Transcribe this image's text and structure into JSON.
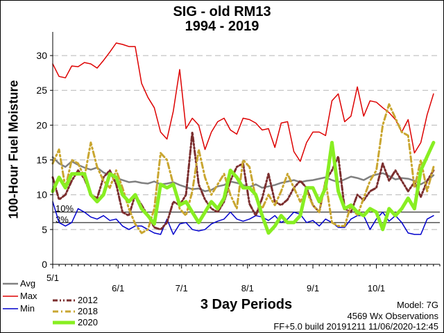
{
  "chart_data": {
    "type": "line",
    "title": "SIG - old RM13",
    "subtitle": "1994 - 2019",
    "xlabel": "3 Day Periods",
    "ylabel": "100-Hour Fuel Moisture",
    "ylim": [
      0,
      33
    ],
    "yticks": [
      0,
      5,
      10,
      15,
      20,
      25,
      30
    ],
    "xlim": [
      0,
      61
    ],
    "x_ticks": [
      {
        "label": "5/1",
        "x": 0
      },
      {
        "label": "6/1",
        "x": 10.3
      },
      {
        "label": "7/1",
        "x": 20.3
      },
      {
        "label": "8/1",
        "x": 30.7
      },
      {
        "label": "9/1",
        "x": 41
      },
      {
        "label": "10/1",
        "x": 51
      }
    ],
    "grid": true,
    "threshold_labels": [
      "10%",
      "3%"
    ],
    "thresholds": [
      7.5,
      6
    ],
    "series": [
      {
        "name": "Avg",
        "color": "#808080",
        "values": [
          15.4,
          14.5,
          14,
          14.8,
          14.3,
          13.9,
          13.6,
          13.9,
          13.2,
          12.8,
          12.4,
          12.1,
          11.8,
          11.9,
          11.7,
          11.6,
          11.9,
          11.5,
          11.6,
          11.8,
          11.4,
          11.1,
          10.8,
          10.9,
          10.5,
          10.7,
          11.2,
          11.4,
          11.9,
          11.7,
          11.4,
          11.1,
          11.5,
          11,
          11.2,
          11.4,
          11.7,
          11.9,
          12.1,
          11.8,
          12,
          12.1,
          12.3,
          12.5,
          12.1,
          11.8,
          12.2,
          12.6,
          12.4,
          12.1,
          12.6,
          12.9,
          13.1,
          12.7,
          12.2,
          12.4,
          12.3,
          12,
          11.5,
          12,
          12.8
        ]
      },
      {
        "name": "Max",
        "color": "#dd0000",
        "values": [
          28.8,
          27,
          26.8,
          28.5,
          28.4,
          29,
          28.8,
          28.2,
          29.3,
          30.5,
          31.8,
          31.6,
          31.3,
          31.3,
          26,
          24,
          22.5,
          19,
          18,
          22,
          28,
          19.5,
          21,
          20,
          16.5,
          19,
          20.5,
          21,
          19.3,
          18.7,
          21,
          20.8,
          20.3,
          19.3,
          19.5,
          16.8,
          20.3,
          20.5,
          16.2,
          14.8,
          17.5,
          19,
          19,
          18.5,
          23.5,
          24.5,
          20.5,
          21.3,
          25.5,
          21.3,
          23.5,
          23.3,
          22.5,
          21.8,
          20.8,
          19,
          20.8,
          16,
          17.5,
          21.5,
          24.5
        ]
      },
      {
        "name": "Min",
        "color": "#0000cc",
        "values": [
          9,
          6,
          5.5,
          6,
          8,
          7.5,
          6.8,
          6.5,
          7,
          6.3,
          6.5,
          5.5,
          5,
          5.5,
          5.5,
          5,
          4.5,
          4.3,
          6.5,
          4.3,
          5.8,
          6,
          5,
          4.8,
          5,
          5.8,
          6.2,
          6.5,
          7.5,
          6.5,
          6.2,
          6.5,
          7,
          6.8,
          6.3,
          7,
          6,
          6.5,
          7.5,
          7.2,
          6,
          6.3,
          5.5,
          6.5,
          6,
          5.3,
          5.3,
          6.5,
          7,
          7,
          5,
          6.5,
          7.5,
          6.2,
          7,
          6,
          4.5,
          4.3,
          4.3,
          6.5,
          7
        ]
      },
      {
        "name": "2012",
        "color": "#7b2e2e",
        "values": [
          12.5,
          9.3,
          10,
          12,
          13.5,
          12.3,
          10,
          9.5,
          12.5,
          13.5,
          11.5,
          7.5,
          7,
          10,
          8.5,
          7,
          5.3,
          5,
          6,
          9,
          8.5,
          10,
          19,
          11.5,
          9.3,
          8,
          7.5,
          9,
          12,
          14,
          14.5,
          8.7,
          7,
          9.5,
          13,
          9,
          8.5,
          9.3,
          11,
          12,
          11,
          8.5,
          7.5,
          12,
          13.5,
          15.5,
          8,
          7.5,
          10,
          9.2,
          10.5,
          11,
          14.5,
          12,
          13.5,
          12,
          10.5,
          11.8,
          9.7,
          12,
          13.5
        ]
      },
      {
        "name": "2018",
        "color": "#c9a630",
        "values": [
          14.5,
          16.5,
          11,
          15,
          14.5,
          12.5,
          17.5,
          14,
          12,
          11,
          13.5,
          11,
          8,
          5.8,
          4.5,
          5,
          8,
          16,
          15,
          11.5,
          8,
          7,
          10.5,
          16.5,
          12.5,
          10,
          11.5,
          13,
          10,
          8,
          15,
          14,
          9.5,
          8,
          10,
          8.5,
          10.5,
          13,
          11,
          9,
          10.5,
          8.5,
          7.5,
          12,
          6,
          5.5,
          5.5,
          8.5,
          7,
          9.5,
          12,
          13.5,
          20,
          23,
          21,
          19,
          18.5,
          11,
          15,
          10.5,
          14
        ]
      },
      {
        "name": "2020",
        "color": "#88ee22",
        "values": [
          10.5,
          12.5,
          11,
          13,
          13,
          13,
          10,
          9,
          10,
          13,
          12.5,
          10,
          9,
          10,
          8,
          7,
          5.8,
          11.5,
          11,
          11.5,
          8.5,
          9,
          7.5,
          6,
          7.5,
          9,
          8,
          9.5,
          13.5,
          12.5,
          11,
          11,
          10,
          7,
          4.5,
          5.5,
          7,
          6,
          6,
          7,
          11,
          11,
          9,
          11,
          17.5,
          10.5,
          8,
          8.5,
          7.5,
          7,
          8,
          7.5,
          5,
          8,
          7,
          8,
          9.5,
          8,
          13.5,
          15.5,
          17.5
        ]
      }
    ]
  },
  "legend": {
    "left": [
      {
        "name": "Avg",
        "color": "#808080"
      },
      {
        "name": "Max",
        "color": "#dd0000"
      },
      {
        "name": "Min",
        "color": "#0000cc"
      }
    ],
    "right": [
      {
        "name": "2012",
        "color": "#7b2e2e"
      },
      {
        "name": "2018",
        "color": "#c9a630"
      },
      {
        "name": "2020",
        "color": "#88ee22"
      }
    ]
  },
  "footer": {
    "model": "Model: 7G",
    "observations": "4569 Wx Observations",
    "build": "FF+5.0 build 20191211 11/06/2020-12:45"
  }
}
